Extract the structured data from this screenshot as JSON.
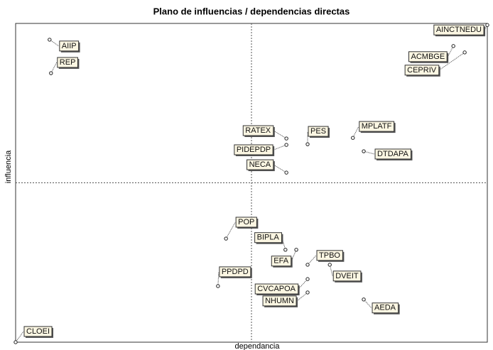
{
  "chart_data": {
    "type": "scatter",
    "title": "Plano de influencias / dependencias directas",
    "xlabel": "dependancia",
    "ylabel": "influencia",
    "xlim": [
      0,
      100
    ],
    "ylim": [
      0,
      100
    ],
    "labels": [
      "AINCTNEDU",
      "ACMBGE",
      "CEPRIV",
      "AIIP",
      "REP",
      "RATEX",
      "PIDEPDP",
      "PES",
      "MPLATF",
      "DTDAPA",
      "NECA",
      "POP",
      "BIPLA",
      "EFA",
      "TPBO",
      "DVEIT",
      "PPDPD",
      "CVCAPOA",
      "NHUMN",
      "AEDA",
      "CLOEI"
    ],
    "x": [
      100,
      92.8,
      95.2,
      7.2,
      7.5,
      57.4,
      57.4,
      61.9,
      71.5,
      73.8,
      57.4,
      44.6,
      57.2,
      59.5,
      61.9,
      66.6,
      42.9,
      61.9,
      61.9,
      73.8,
      0
    ],
    "y": [
      99.5,
      92.9,
      90.9,
      94.9,
      84.4,
      63.9,
      61.9,
      62.1,
      64.1,
      59.9,
      53.2,
      32.5,
      29.0,
      29.0,
      24.3,
      24.3,
      17.6,
      19.8,
      15.6,
      13.4,
      0
    ]
  }
}
